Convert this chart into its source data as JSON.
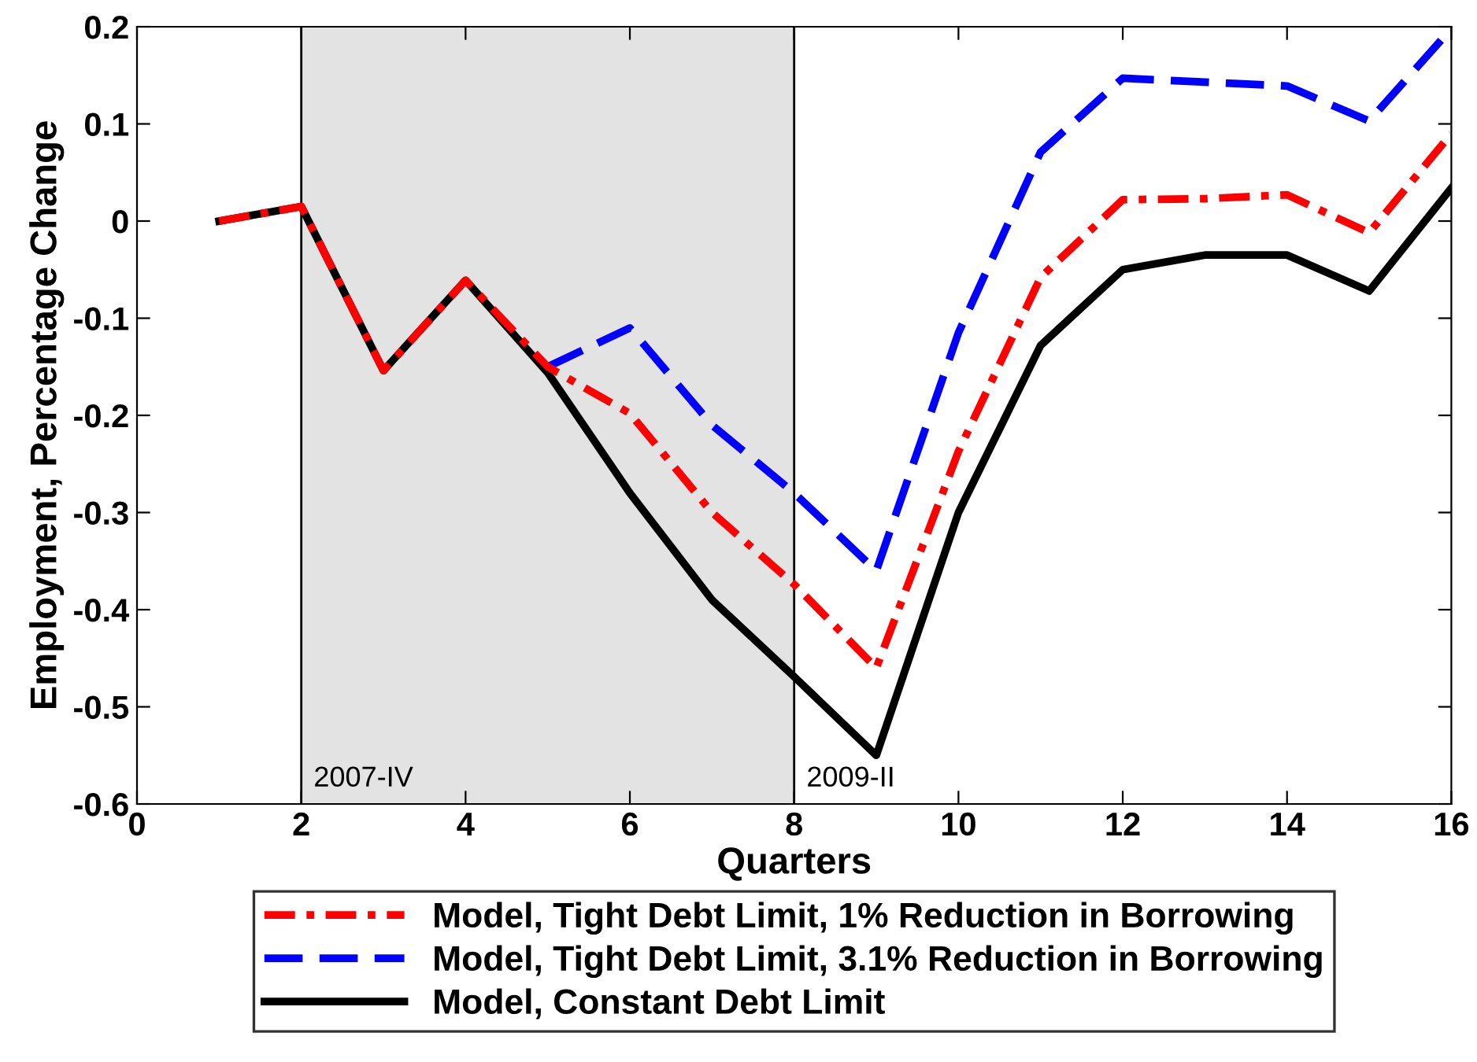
{
  "chart_data": {
    "type": "line",
    "xlabel": "Quarters",
    "ylabel": "Employment, Percentage Change",
    "xlim": [
      0,
      16
    ],
    "xticks": [
      0,
      2,
      4,
      6,
      8,
      10,
      12,
      14,
      16
    ],
    "ylim": [
      -0.6,
      0.2
    ],
    "yticks": [
      -0.6,
      -0.5,
      -0.4,
      -0.3,
      -0.2,
      -0.1,
      0,
      0.1,
      0.2
    ],
    "grid": false,
    "legend": "bottom",
    "bands": [
      {
        "axis": "x",
        "from": 2,
        "to": 8,
        "color": "#e3e3e3"
      }
    ],
    "ref_lines": [
      {
        "axis": "x",
        "value": 2,
        "label": "2007-IV",
        "color": "#000000"
      },
      {
        "axis": "x",
        "value": 8,
        "label": "2009-II",
        "color": "#000000"
      }
    ],
    "series": [
      {
        "name": "Model, Tight Debt Limit, 1% Reduction in Borrowing",
        "color": "#ff0000",
        "line_style": "dashdot",
        "x": [
          1,
          2,
          3,
          4,
          5,
          6,
          7,
          8,
          9,
          10,
          11,
          12,
          13,
          14,
          15,
          16
        ],
        "values": [
          0,
          0.015,
          -0.154,
          -0.061,
          -0.15,
          -0.198,
          -0.3,
          -0.374,
          -0.46,
          -0.237,
          -0.058,
          0.022,
          0.023,
          0.027,
          -0.012,
          0.09
        ]
      },
      {
        "name": "Model, Tight Debt Limit, 3.1% Reduction in Borrowing",
        "color": "#0000ff",
        "line_style": "dashed",
        "x": [
          5,
          6,
          7,
          8,
          9,
          10,
          11,
          12,
          13,
          14,
          15,
          16
        ],
        "values": [
          -0.15,
          -0.11,
          -0.21,
          -0.28,
          -0.36,
          -0.115,
          0.071,
          0.147,
          0.143,
          0.139,
          0.103,
          0.198
        ]
      },
      {
        "name": "Model, Constant Debt Limit",
        "color": "#000000",
        "line_style": "solid",
        "x": [
          1,
          2,
          3,
          4,
          5,
          6,
          7,
          8,
          9,
          10,
          11,
          12,
          13,
          14,
          15,
          16
        ],
        "values": [
          0,
          0.015,
          -0.154,
          -0.061,
          -0.156,
          -0.28,
          -0.39,
          -0.469,
          -0.55,
          -0.3,
          -0.128,
          -0.05,
          -0.035,
          -0.035,
          -0.072,
          0.034
        ]
      }
    ]
  }
}
